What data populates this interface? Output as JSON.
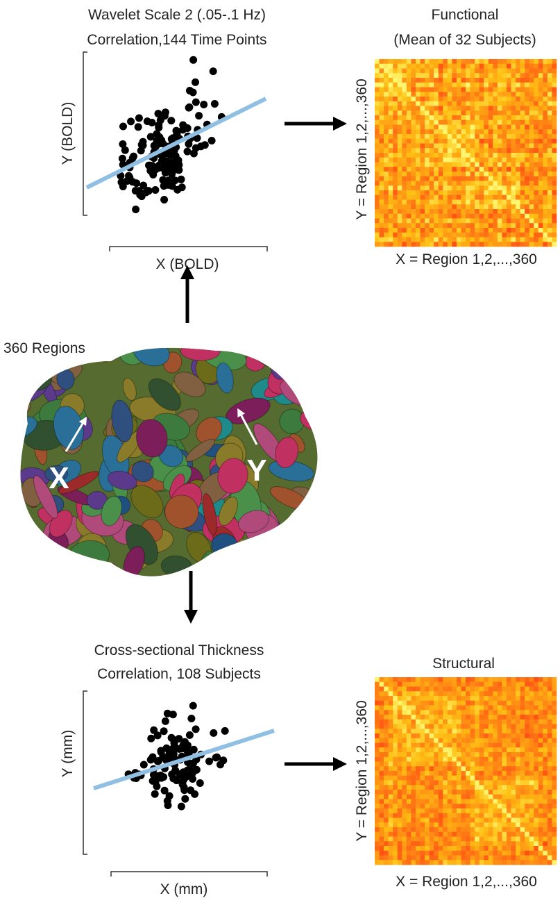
{
  "functional_scatter": {
    "title": "Wavelet Scale 2 (.05-.1 Hz)",
    "subtitle": "Correlation,144 Time Points",
    "x_label": "X (BOLD)",
    "y_label": "Y (BOLD)"
  },
  "functional_matrix": {
    "title": "Functional",
    "subtitle": "(Mean of 32 Subjects)",
    "x_label": "X = Region 1,2,...,360",
    "y_label": "Y = Region 1,2,...,360"
  },
  "brain": {
    "label": "360 Regions",
    "point_x": "X",
    "point_y": "Y"
  },
  "structural_scatter": {
    "title": "Cross-sectional Thickness",
    "subtitle": "Correlation, 108 Subjects",
    "x_label": "X (mm)",
    "y_label": "Y (mm)"
  },
  "structural_matrix": {
    "title": "Structural",
    "x_label": "X = Region 1,2,...,360",
    "y_label": "Y = Region 1,2,...,360"
  }
}
